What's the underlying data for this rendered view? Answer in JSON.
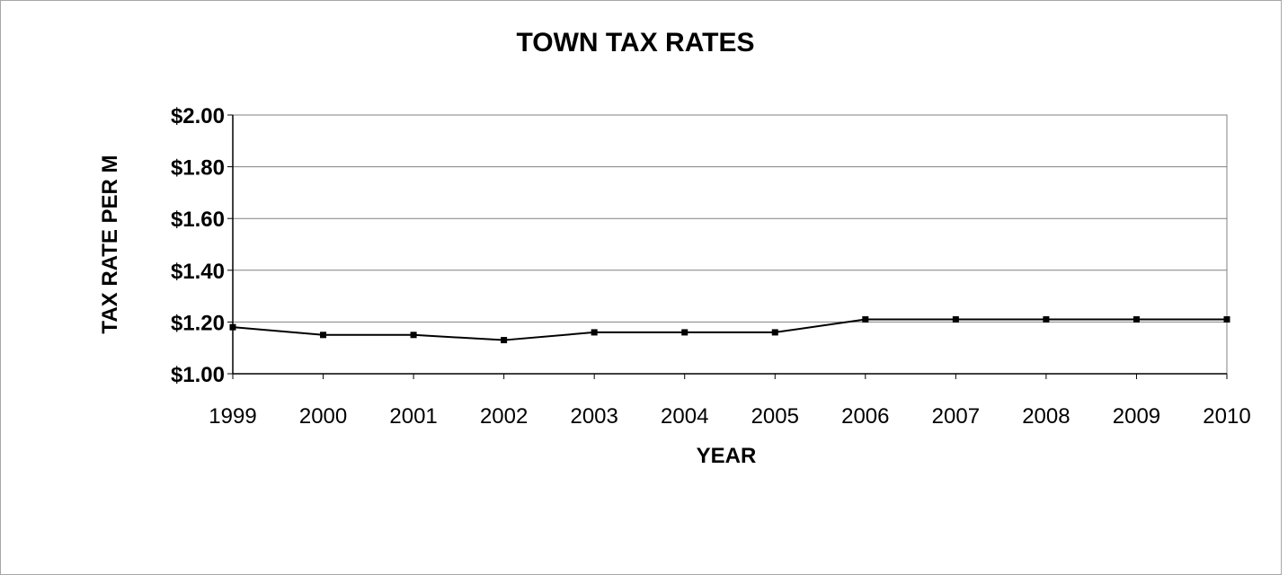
{
  "chart_data": {
    "type": "line",
    "title": "TOWN TAX RATES",
    "xlabel": "YEAR",
    "ylabel": "TAX RATE PER M",
    "categories": [
      "1999",
      "2000",
      "2001",
      "2002",
      "2003",
      "2004",
      "2005",
      "2006",
      "2007",
      "2008",
      "2009",
      "2010"
    ],
    "series": [
      {
        "values": [
          1.18,
          1.15,
          1.15,
          1.13,
          1.16,
          1.16,
          1.16,
          1.21,
          1.21,
          1.21,
          1.21,
          1.21
        ]
      }
    ],
    "ylim": [
      1.0,
      2.0
    ],
    "yticks": [
      1.0,
      1.2,
      1.4,
      1.6,
      1.8,
      2.0
    ],
    "ytick_labels": [
      "$1.00",
      "$1.20",
      "$1.40",
      "$1.60",
      "$1.80",
      "$2.00"
    ],
    "grid": "horizontal",
    "legend": "none",
    "line_color": "#000000",
    "marker": "square"
  }
}
